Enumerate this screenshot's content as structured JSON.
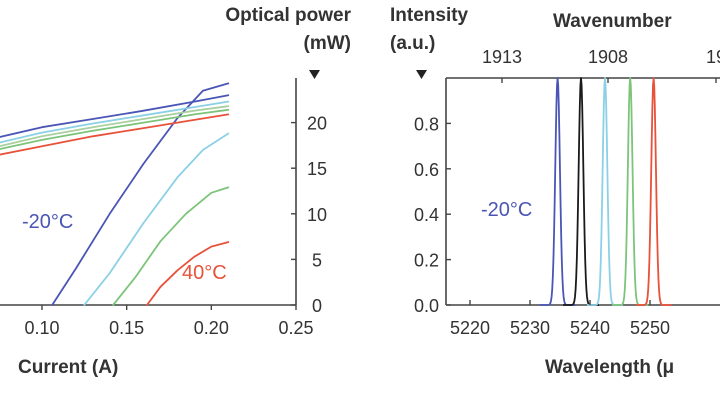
{
  "chart_data": [
    {
      "type": "line",
      "xlabel": "Current (A)",
      "ylabel_right": [
        "Optical power",
        "(mW)"
      ],
      "xlim": [
        0.07,
        0.25
      ],
      "xticks": [
        "0.10",
        "0.15",
        "0.20",
        "0.25"
      ],
      "ylim": [
        0,
        25
      ],
      "yticks": [
        "0",
        "5",
        "10",
        "15",
        "20"
      ],
      "annotations": [
        {
          "text": "-20°C",
          "color": "#4a55b5"
        },
        {
          "text": "40°C",
          "color": "#e8513a"
        }
      ],
      "series": [
        {
          "color": "#4a55b5",
          "x": [
            0.106,
            0.12,
            0.14,
            0.16,
            0.18,
            0.195,
            0.21
          ],
          "y": [
            0,
            4,
            10,
            15.5,
            20.5,
            23.5,
            24.3
          ]
        },
        {
          "color": "#8cd0e6",
          "x": [
            0.125,
            0.14,
            0.16,
            0.18,
            0.195,
            0.21
          ],
          "y": [
            0,
            3.5,
            9,
            14,
            17,
            18.8
          ]
        },
        {
          "color": "#7cc47a",
          "x": [
            0.142,
            0.155,
            0.17,
            0.185,
            0.2,
            0.21
          ],
          "y": [
            0,
            3,
            7,
            10,
            12.3,
            12.9
          ]
        },
        {
          "color": "#e8513a",
          "x": [
            0.162,
            0.17,
            0.18,
            0.19,
            0.2,
            0.21
          ],
          "y": [
            0,
            2,
            3.8,
            5.3,
            6.4,
            6.9
          ]
        },
        {
          "color": "#4a55b5",
          "x": [
            0.07,
            0.1,
            0.13,
            0.16,
            0.19,
            0.21
          ],
          "y": [
            18.2,
            19.5,
            20.4,
            21.3,
            22.3,
            23.0
          ]
        },
        {
          "color": "#8cd0e6",
          "x": [
            0.07,
            0.1,
            0.13,
            0.16,
            0.19,
            0.21
          ],
          "y": [
            17.6,
            18.9,
            19.9,
            20.8,
            21.7,
            22.3
          ]
        },
        {
          "color": "#aad0a0",
          "x": [
            0.07,
            0.1,
            0.13,
            0.16,
            0.19,
            0.21
          ],
          "y": [
            17.2,
            18.5,
            19.5,
            20.4,
            21.3,
            21.8
          ]
        },
        {
          "color": "#7cc47a",
          "x": [
            0.07,
            0.1,
            0.13,
            0.16,
            0.19,
            0.21
          ],
          "y": [
            16.9,
            18.1,
            19.1,
            20.0,
            20.9,
            21.4
          ]
        },
        {
          "color": "#e8513a",
          "x": [
            0.07,
            0.1,
            0.13,
            0.16,
            0.19,
            0.21
          ],
          "y": [
            16.3,
            17.4,
            18.5,
            19.4,
            20.3,
            20.9
          ]
        }
      ]
    },
    {
      "type": "line",
      "xlabel": "Wavelength (μ",
      "ylabel": [
        "Intensity",
        "(a.u.)"
      ],
      "top_axis_label": "Wavenumber",
      "xlim": [
        5216,
        5254
      ],
      "xticks": [
        "5220",
        "5230",
        "5240",
        "5250"
      ],
      "top_ticks": [
        "1913",
        "1908",
        "19"
      ],
      "ylim": [
        0,
        1.0
      ],
      "yticks": [
        "0.0",
        "0.2",
        "0.4",
        "0.6",
        "0.8"
      ],
      "annotations": [
        {
          "text": "-20°C",
          "color": "#4a55b5"
        }
      ],
      "series": [
        {
          "color": "#4a55b5",
          "peak": 5234.6
        },
        {
          "color": "#1a1a1a",
          "peak": 5238.5
        },
        {
          "color": "#8cd0e6",
          "peak": 5242.5
        },
        {
          "color": "#7cc47a",
          "peak": 5246.7
        },
        {
          "color": "#e8513a",
          "peak": 5250.6
        }
      ]
    }
  ]
}
